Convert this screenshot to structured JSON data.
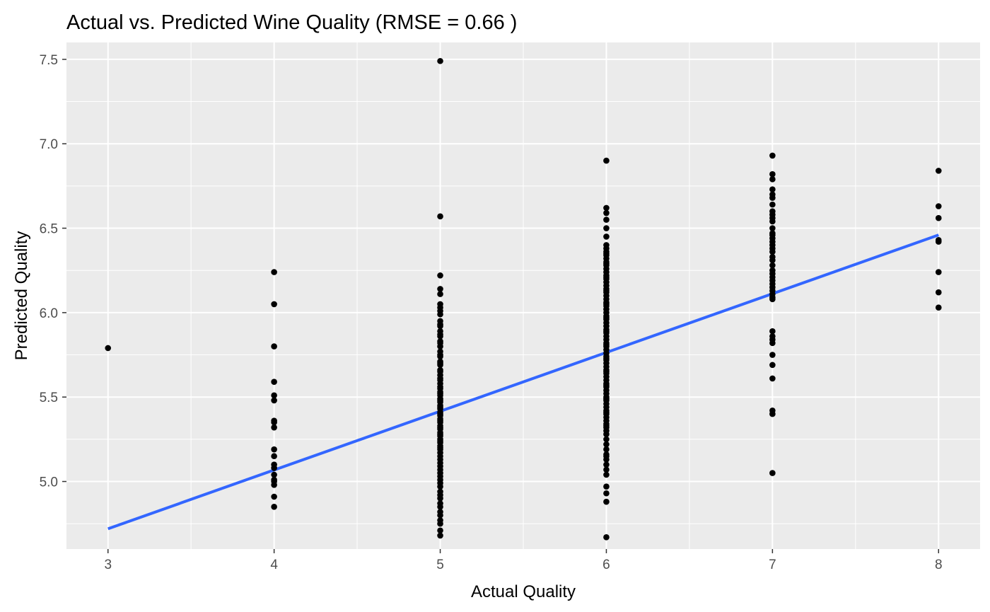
{
  "chart_data": {
    "type": "scatter",
    "title": "Actual vs. Predicted Wine Quality (RMSE = 0.66 )",
    "xlabel": "Actual Quality",
    "ylabel": "Predicted Quality",
    "xlim": [
      2.75,
      8.25
    ],
    "ylim": [
      4.6,
      7.6
    ],
    "x_ticks": [
      3,
      4,
      5,
      6,
      7,
      8
    ],
    "x_tick_labels": [
      "3",
      "4",
      "5",
      "6",
      "7",
      "8"
    ],
    "y_ticks": [
      5.0,
      5.5,
      6.0,
      6.5,
      7.0,
      7.5
    ],
    "y_tick_labels": [
      "5.0",
      "5.5",
      "6.0",
      "6.5",
      "7.0",
      "7.5"
    ],
    "grid": true,
    "panel_color": "#ebebeb",
    "grid_color": "#ffffff",
    "point_color": "#000000",
    "line_color": "#3366ff",
    "trend_line": {
      "x": [
        3,
        8
      ],
      "y": [
        4.72,
        6.46
      ]
    },
    "series": [
      {
        "x": [
          3
        ],
        "y": [
          5.79
        ]
      },
      {
        "x": [
          4,
          4,
          4,
          4,
          4,
          4,
          4,
          4,
          4,
          4,
          4,
          4,
          4,
          4,
          4,
          4,
          4,
          4,
          4
        ],
        "y": [
          6.24,
          6.05,
          5.8,
          5.59,
          5.51,
          5.48,
          5.36,
          5.32,
          5.19,
          5.15,
          5.1,
          5.08,
          5.04,
          5.01,
          5.0,
          4.98,
          4.91,
          4.85,
          5.35
        ]
      },
      {
        "x": [
          5,
          5,
          5,
          5,
          5,
          5,
          5,
          5,
          5,
          5,
          5,
          5,
          5,
          5,
          5,
          5,
          5,
          5,
          5,
          5,
          5,
          5,
          5,
          5,
          5,
          5,
          5,
          5,
          5,
          5,
          5,
          5,
          5,
          5,
          5,
          5,
          5,
          5,
          5,
          5,
          5,
          5,
          5,
          5,
          5,
          5,
          5,
          5,
          5,
          5,
          5,
          5,
          5,
          5,
          5,
          5,
          5,
          5,
          5,
          5,
          5,
          5,
          5,
          5,
          5,
          5,
          5,
          5,
          5,
          5,
          5,
          5,
          5,
          5,
          5,
          5,
          5,
          5,
          5,
          5,
          5
        ],
        "y": [
          7.49,
          6.57,
          6.22,
          6.14,
          6.11,
          6.05,
          6.03,
          5.99,
          5.95,
          5.92,
          5.89,
          5.86,
          5.83,
          5.8,
          5.77,
          5.74,
          5.71,
          5.69,
          5.66,
          5.63,
          5.61,
          5.58,
          5.56,
          5.53,
          5.51,
          5.49,
          5.47,
          5.45,
          5.43,
          5.41,
          5.39,
          5.37,
          5.35,
          5.33,
          5.31,
          5.29,
          5.27,
          5.25,
          5.23,
          5.21,
          5.19,
          5.17,
          5.15,
          5.13,
          5.11,
          5.09,
          5.07,
          5.05,
          5.03,
          5.01,
          4.99,
          4.97,
          4.94,
          4.92,
          4.9,
          4.87,
          4.85,
          4.82,
          4.8,
          4.77,
          4.75,
          4.71,
          4.68,
          5.32,
          5.28,
          5.24,
          5.2,
          5.36,
          5.4,
          5.44,
          5.48,
          5.52,
          5.55,
          5.6,
          5.65,
          5.7,
          5.75,
          5.82,
          5.87,
          5.93,
          6.01
        ]
      },
      {
        "x": [
          6,
          6,
          6,
          6,
          6,
          6,
          6,
          6,
          6,
          6,
          6,
          6,
          6,
          6,
          6,
          6,
          6,
          6,
          6,
          6,
          6,
          6,
          6,
          6,
          6,
          6,
          6,
          6,
          6,
          6,
          6,
          6,
          6,
          6,
          6,
          6,
          6,
          6,
          6,
          6,
          6,
          6,
          6,
          6,
          6,
          6,
          6,
          6,
          6,
          6,
          6,
          6,
          6,
          6,
          6,
          6,
          6,
          6,
          6,
          6,
          6,
          6,
          6,
          6,
          6,
          6,
          6,
          6,
          6,
          6,
          6,
          6,
          6,
          6,
          6,
          6,
          6,
          6,
          6,
          6,
          6,
          6,
          6,
          6,
          6,
          6,
          6,
          6,
          6,
          6
        ],
        "y": [
          6.9,
          6.62,
          6.59,
          6.55,
          6.5,
          6.45,
          6.4,
          6.38,
          6.36,
          6.34,
          6.32,
          6.3,
          6.28,
          6.26,
          6.24,
          6.22,
          6.2,
          6.18,
          6.16,
          6.14,
          6.12,
          6.1,
          6.08,
          6.06,
          6.04,
          6.02,
          6.0,
          5.98,
          5.96,
          5.94,
          5.92,
          5.9,
          5.88,
          5.86,
          5.84,
          5.82,
          5.8,
          5.78,
          5.76,
          5.74,
          5.72,
          5.7,
          5.68,
          5.66,
          5.64,
          5.62,
          5.6,
          5.58,
          5.56,
          5.54,
          5.52,
          5.5,
          5.48,
          5.46,
          5.44,
          5.42,
          5.4,
          5.38,
          5.36,
          5.34,
          5.32,
          5.3,
          5.28,
          5.25,
          5.22,
          5.19,
          5.16,
          5.13,
          5.1,
          5.07,
          5.04,
          4.97,
          4.93,
          4.88,
          4.67,
          5.89,
          5.97,
          6.05,
          6.13,
          6.21,
          5.81,
          5.73,
          5.65,
          5.57,
          5.49,
          5.41,
          5.33,
          6.29,
          6.35,
          5.15
        ]
      },
      {
        "x": [
          7,
          7,
          7,
          7,
          7,
          7,
          7,
          7,
          7,
          7,
          7,
          7,
          7,
          7,
          7,
          7,
          7,
          7,
          7,
          7,
          7,
          7,
          7,
          7,
          7,
          7,
          7,
          7,
          7,
          7,
          7,
          7,
          7,
          7,
          7,
          7,
          7,
          7,
          7,
          7,
          7,
          7
        ],
        "y": [
          6.93,
          6.82,
          6.79,
          6.73,
          6.68,
          6.64,
          6.6,
          6.58,
          6.54,
          6.5,
          6.47,
          6.44,
          6.42,
          6.4,
          6.38,
          6.36,
          6.33,
          6.31,
          6.28,
          6.23,
          6.21,
          6.19,
          6.17,
          6.15,
          6.13,
          6.11,
          6.09,
          6.08,
          5.89,
          5.86,
          5.84,
          5.82,
          5.75,
          5.69,
          5.61,
          5.42,
          5.4,
          5.05,
          6.25,
          6.56,
          6.7,
          6.46
        ]
      },
      {
        "x": [
          8,
          8,
          8,
          8,
          8,
          8,
          8,
          8
        ],
        "y": [
          6.84,
          6.63,
          6.56,
          6.43,
          6.42,
          6.24,
          6.12,
          6.03
        ]
      }
    ]
  }
}
